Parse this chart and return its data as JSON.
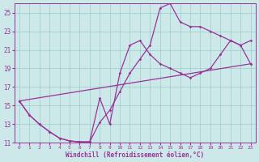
{
  "xlabel": "Windchill (Refroidissement éolien,°C)",
  "xlim": [
    -0.5,
    23.5
  ],
  "ylim": [
    11,
    26
  ],
  "xticks": [
    0,
    1,
    2,
    3,
    4,
    5,
    6,
    7,
    8,
    9,
    10,
    11,
    12,
    13,
    14,
    15,
    16,
    17,
    18,
    19,
    20,
    21,
    22,
    23
  ],
  "yticks": [
    11,
    13,
    15,
    17,
    19,
    21,
    23,
    25
  ],
  "bg_color": "#cce8e8",
  "line_color": "#993399",
  "grid_color": "#99cccc",
  "line1_x": [
    0,
    1,
    2,
    3,
    4,
    5,
    6,
    7,
    8,
    9,
    10,
    11,
    12,
    13,
    14,
    15,
    16,
    17,
    18,
    19,
    20,
    21,
    22,
    23
  ],
  "line1_y": [
    15.5,
    14.0,
    13.0,
    12.2,
    11.5,
    11.2,
    11.1,
    11.1,
    15.8,
    13.0,
    18.5,
    21.5,
    22.0,
    20.5,
    19.5,
    19.0,
    18.5,
    18.0,
    18.5,
    19.0,
    20.5,
    22.0,
    21.5,
    19.5
  ],
  "line2_x": [
    0,
    1,
    2,
    3,
    4,
    5,
    6,
    7,
    8,
    9,
    10,
    11,
    12,
    13,
    14,
    15,
    16,
    17,
    18,
    19,
    20,
    21,
    22,
    23
  ],
  "line2_y": [
    15.5,
    14.0,
    13.0,
    12.2,
    11.5,
    11.2,
    11.1,
    11.1,
    13.2,
    14.5,
    16.5,
    18.5,
    20.0,
    21.5,
    25.5,
    26.0,
    24.0,
    23.5,
    23.5,
    23.0,
    22.5,
    22.0,
    21.5,
    22.0
  ],
  "line3_x": [
    0,
    23
  ],
  "line3_y": [
    15.5,
    19.5
  ]
}
